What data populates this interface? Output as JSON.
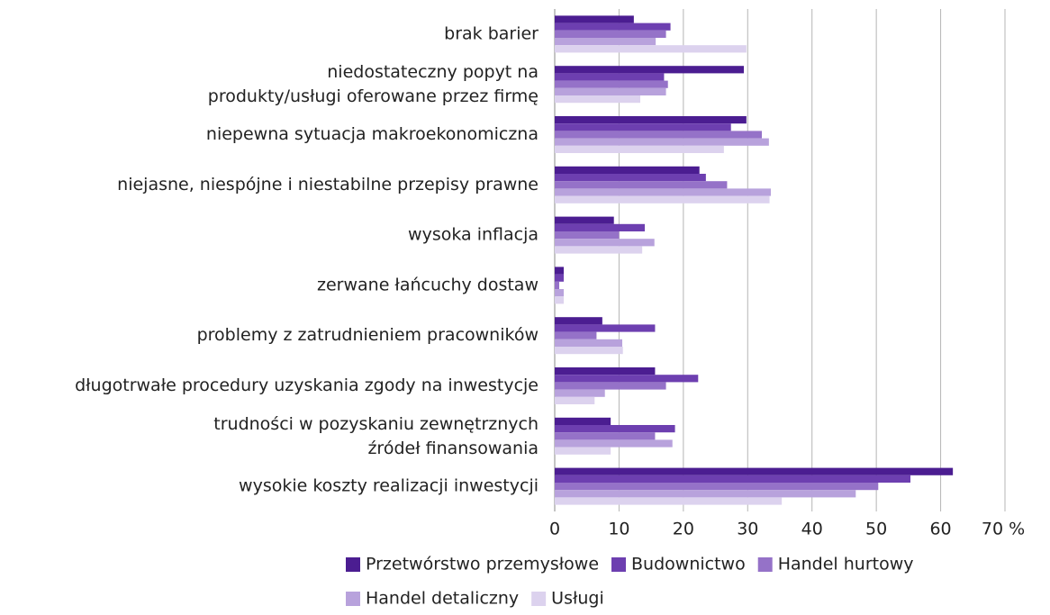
{
  "chart_data": {
    "type": "hbar",
    "categories": [
      "brak barier",
      "niedostateczny popyt na\nprodukty/usługi oferowane przez firmę",
      "niepewna sytuacja makroekonomiczna",
      "niejasne, niespójne i niestabilne przepisy prawne",
      "wysoka inflacja",
      "zerwane łańcuchy dostaw",
      "problemy z zatrudnieniem pracowników",
      "długotrwałe procedury uzyskania zgody na inwestycje",
      "trudności w pozyskaniu zewnętrznych\nźródeł finansowania",
      "wysokie koszty realizacji inwestycji"
    ],
    "series": [
      {
        "name": "Przetwórstwo przemysłowe",
        "color": "#4b1d91",
        "values": [
          12.3,
          29.4,
          29.8,
          22.5,
          9.2,
          1.4,
          7.4,
          15.6,
          8.7,
          61.9
        ]
      },
      {
        "name": "Budownictwo",
        "color": "#6d3fb0",
        "values": [
          18,
          17,
          27.4,
          23.5,
          14,
          1.4,
          15.6,
          22.3,
          18.7,
          55.3
        ]
      },
      {
        "name": "Handel hurtowy",
        "color": "#9572c8",
        "values": [
          17.3,
          17.6,
          32.2,
          26.8,
          10,
          0.7,
          6.5,
          17.3,
          15.6,
          50.3
        ]
      },
      {
        "name": "Handel detaliczny",
        "color": "#b8a2dc",
        "values": [
          15.7,
          17.3,
          33.3,
          33.6,
          15.5,
          1.4,
          10.5,
          7.8,
          18.3,
          46.8
        ]
      },
      {
        "name": "Usługi",
        "color": "#dcd2ee",
        "values": [
          29.8,
          13.3,
          26.3,
          33.4,
          13.6,
          1.4,
          10.6,
          6.2,
          8.7,
          35.3
        ]
      }
    ],
    "xlim": [
      0,
      70
    ],
    "xticks": [
      0,
      10,
      20,
      30,
      40,
      50,
      60,
      {
        "value": 70,
        "label": "70 %"
      }
    ],
    "grid": true
  }
}
